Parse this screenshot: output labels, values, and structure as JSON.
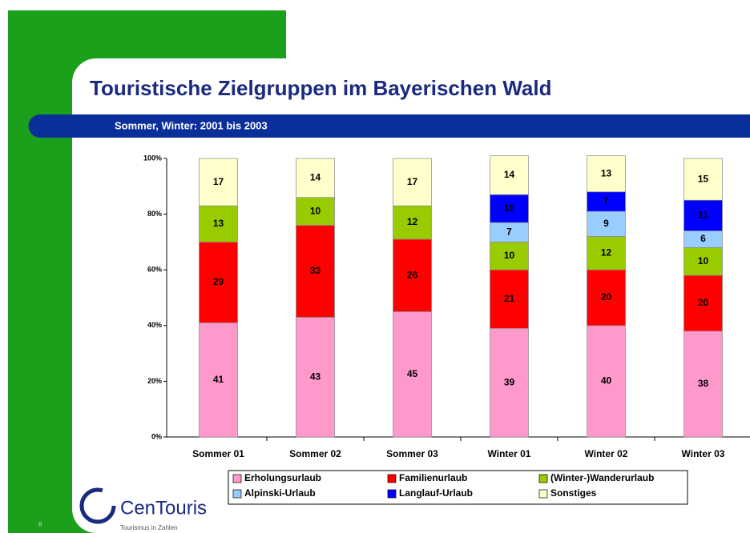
{
  "chart_data": {
    "type": "stacked_bar",
    "title": "Touristische Zielgruppen im Bayerischen Wald",
    "subtitle": "Sommer, Winter: 2001 bis 2003",
    "categories": [
      "Sommer 01",
      "Sommer 02",
      "Sommer 03",
      "Winter 01",
      "Winter 02",
      "Winter 03"
    ],
    "series": [
      {
        "name": "Erholungsurlaub",
        "color": "#ff99cc",
        "values": [
          41,
          43,
          45,
          39,
          40,
          38
        ]
      },
      {
        "name": "Familienurlaub",
        "color": "#ff0000",
        "values": [
          29,
          33,
          26,
          21,
          20,
          20
        ]
      },
      {
        "name": "(Winter-)Wanderurlaub",
        "color": "#99cc00",
        "values": [
          13,
          10,
          12,
          10,
          12,
          10
        ]
      },
      {
        "name": "Alpinski-Urlaub",
        "color": "#99ccff",
        "values": [
          null,
          null,
          null,
          7,
          9,
          6
        ]
      },
      {
        "name": "Langlauf-Urlaub",
        "color": "#0000ff",
        "values": [
          null,
          null,
          null,
          10,
          7,
          11
        ]
      },
      {
        "name": "Sonstiges",
        "color": "#ffffcc",
        "values": [
          17,
          14,
          17,
          14,
          13,
          15
        ]
      }
    ],
    "ylim": [
      0,
      100
    ],
    "yticks": [
      {
        "value": 0,
        "label": "0%"
      },
      {
        "value": 20,
        "label": "20%"
      },
      {
        "value": 40,
        "label": "40%"
      },
      {
        "value": 60,
        "label": "60%"
      },
      {
        "value": 80,
        "label": "80%"
      },
      {
        "value": 100,
        "label": "100%"
      }
    ],
    "legend": "bottom"
  },
  "logo": {
    "name": "CenTouris",
    "tagline": "Tourismus in Zahlen"
  },
  "page_number": "8"
}
